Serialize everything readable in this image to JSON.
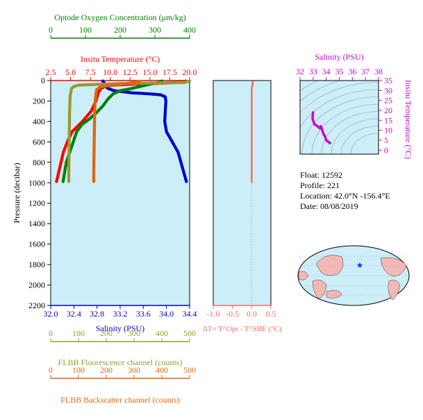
{
  "colors": {
    "oxygen": "#008000",
    "temperature": "#ff0000",
    "salinity": "#0000cc",
    "fluorescence": "#999933",
    "backscatter": "#dd6611",
    "delta_t": "#ff6666",
    "ts_diagram": "#cc00cc",
    "plot_bg": "#cceef8",
    "land": "#f5b8b8"
  },
  "info": {
    "float_label": "Float:",
    "float_value": "12592",
    "profile_label": "Profile:",
    "profile_value": "221",
    "location_label": "Location:",
    "location_value": "42.0°N  -156.4°E",
    "date_label": "Date:",
    "date_value": "08/08/2019"
  },
  "chart_data": [
    {
      "type": "line",
      "panel": "profile",
      "ylabel": "Pressure (decibar)",
      "ylim": [
        2200,
        0
      ],
      "yticks": [
        0,
        200,
        400,
        600,
        800,
        1000,
        1200,
        1400,
        1600,
        1800,
        2000,
        2200
      ],
      "axes": {
        "oxygen": {
          "label": "Optode Oxygen Concentration (μm/kg)",
          "lim": [
            0,
            400
          ],
          "ticks": [
            0,
            100,
            200,
            300,
            400
          ]
        },
        "temperature": {
          "label": "Insitu Temperature (°C)",
          "lim": [
            2.5,
            20.0
          ],
          "ticks": [
            "2.5",
            "5.0",
            "7.5",
            "10.0",
            "12.5",
            "15.0",
            "17.5",
            "20.0"
          ]
        },
        "salinity": {
          "label": "Salinity (PSU)",
          "lim": [
            32.0,
            34.4
          ],
          "ticks": [
            "32.0",
            "32.4",
            "32.8",
            "33.2",
            "33.6",
            "34.0",
            "34.4"
          ]
        },
        "fluorescence": {
          "label": "FLBB Fluorescence channel (counts)",
          "lim": [
            0,
            500
          ],
          "ticks": [
            0,
            100,
            200,
            300,
            400,
            500
          ]
        },
        "backscatter": {
          "label": "FLBB Backscatter channel (counts)",
          "lim": [
            0,
            500
          ],
          "ticks": [
            0,
            100,
            200,
            300,
            400,
            500
          ]
        }
      },
      "series": [
        {
          "key": "salinity",
          "axis": "salinity",
          "style": "dots",
          "points": [
            [
              32.9,
              5
            ],
            [
              32.92,
              20
            ],
            [
              32.93,
              40
            ],
            [
              32.95,
              60
            ],
            [
              33.0,
              80
            ],
            [
              33.1,
              100
            ],
            [
              33.4,
              120
            ],
            [
              33.7,
              130
            ],
            [
              33.9,
              140
            ],
            [
              33.98,
              160
            ],
            [
              33.99,
              200
            ],
            [
              33.98,
              300
            ],
            [
              33.97,
              400
            ],
            [
              34.0,
              500
            ],
            [
              34.1,
              600
            ],
            [
              34.2,
              700
            ],
            [
              34.25,
              800
            ],
            [
              34.3,
              900
            ],
            [
              34.35,
              1000
            ]
          ]
        },
        {
          "key": "temperature",
          "axis": "temperature",
          "style": "dots",
          "points": [
            [
              19.5,
              5
            ],
            [
              19.0,
              15
            ],
            [
              17.0,
              25
            ],
            [
              13.0,
              35
            ],
            [
              9.5,
              50
            ],
            [
              8.8,
              80
            ],
            [
              8.5,
              120
            ],
            [
              8.2,
              200
            ],
            [
              7.6,
              300
            ],
            [
              6.5,
              400
            ],
            [
              5.2,
              500
            ],
            [
              4.6,
              600
            ],
            [
              4.1,
              700
            ],
            [
              3.8,
              800
            ],
            [
              3.5,
              900
            ],
            [
              3.2,
              1000
            ]
          ]
        },
        {
          "key": "oxygen",
          "axis": "oxygen",
          "style": "dots",
          "points": [
            [
              320,
              5
            ],
            [
              310,
              20
            ],
            [
              280,
              40
            ],
            [
              255,
              60
            ],
            [
              230,
              80
            ],
            [
              200,
              100
            ],
            [
              180,
              130
            ],
            [
              165,
              180
            ],
            [
              150,
              250
            ],
            [
              130,
              320
            ],
            [
              110,
              380
            ],
            [
              90,
              430
            ],
            [
              75,
              500
            ],
            [
              65,
              600
            ],
            [
              55,
              700
            ],
            [
              45,
              800
            ],
            [
              40,
              900
            ],
            [
              35,
              1000
            ]
          ]
        },
        {
          "key": "fluorescence",
          "axis": "fluorescence",
          "style": "dots",
          "points": [
            [
              500,
              5
            ],
            [
              480,
              20
            ],
            [
              250,
              30
            ],
            [
              100,
              45
            ],
            [
              82,
              60
            ],
            [
              75,
              80
            ],
            [
              70,
              150
            ],
            [
              68,
              300
            ],
            [
              67,
              500
            ],
            [
              66,
              700
            ],
            [
              65,
              900
            ],
            [
              65,
              1000
            ]
          ]
        },
        {
          "key": "backscatter",
          "axis": "backscatter",
          "style": "dots",
          "points": [
            [
              320,
              10
            ],
            [
              250,
              40
            ],
            [
              180,
              60
            ],
            [
              165,
              90
            ],
            [
              160,
              200
            ],
            [
              158,
              350
            ],
            [
              157,
              500
            ],
            [
              156,
              700
            ],
            [
              155,
              900
            ],
            [
              155,
              1000
            ]
          ]
        }
      ]
    },
    {
      "type": "line",
      "panel": "delta_t",
      "xlabel": "ΔT= T^Opt - T^SBE (°C)",
      "xlim": [
        -1.0,
        0.5
      ],
      "xticks": [
        "-1.0",
        "-0.5",
        "0.0",
        "0.5"
      ],
      "ylim": [
        2200,
        0
      ],
      "series": [
        {
          "key": "delta_t",
          "points": [
            [
              0.02,
              5
            ],
            [
              0.03,
              30
            ],
            [
              0.01,
              60
            ],
            [
              0.0,
              100
            ],
            [
              0.0,
              300
            ],
            [
              0.0,
              600
            ],
            [
              0.0,
              1000
            ]
          ]
        }
      ]
    },
    {
      "type": "line",
      "panel": "ts_diagram",
      "xlabel": "Salinity (PSU)",
      "ylabel": "Insitu Temperature (°C)",
      "xlim": [
        32,
        38
      ],
      "xticks": [
        32,
        33,
        34,
        35,
        36,
        37,
        38
      ],
      "ylim": [
        -2,
        35
      ],
      "yticks": [
        0,
        5,
        10,
        15,
        20,
        25,
        30,
        35
      ],
      "series": [
        {
          "key": "ts",
          "points": [
            [
              33.0,
              19.5
            ],
            [
              32.95,
              16
            ],
            [
              33.1,
              13
            ],
            [
              33.35,
              12
            ],
            [
              33.5,
              11
            ],
            [
              33.6,
              12
            ],
            [
              33.7,
              10
            ],
            [
              33.8,
              8
            ],
            [
              33.9,
              7
            ],
            [
              34.0,
              5
            ],
            [
              34.2,
              4
            ],
            [
              34.35,
              3.2
            ]
          ]
        }
      ]
    }
  ]
}
